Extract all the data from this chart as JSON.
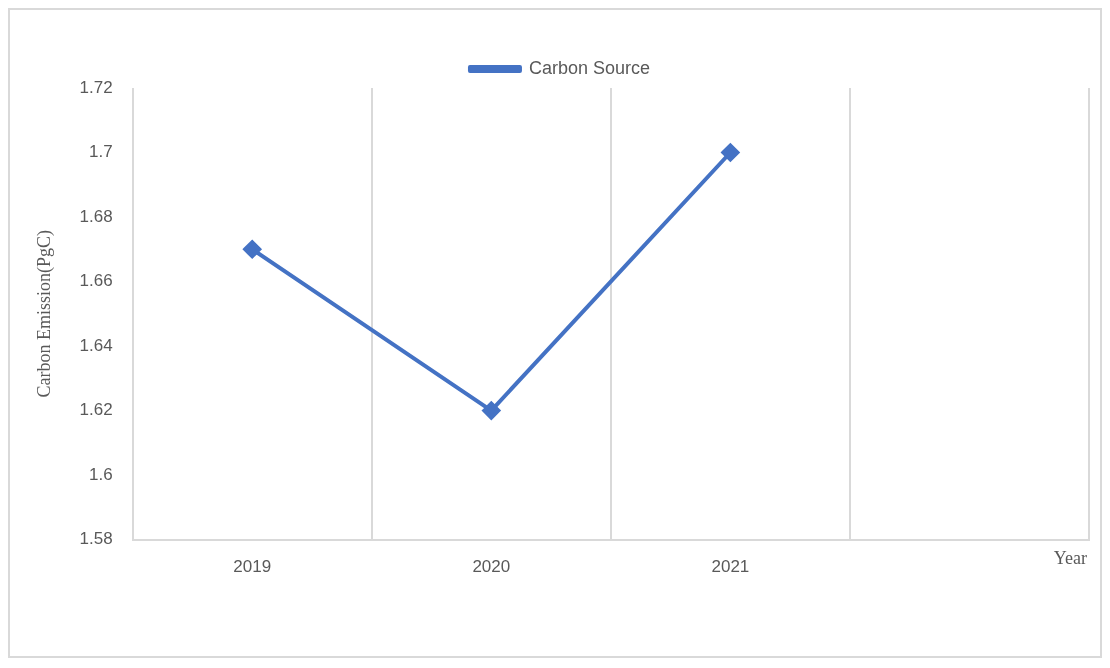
{
  "chart_data": {
    "type": "line",
    "xlabel": "Year",
    "ylabel": "Carbon Emission(PgC)",
    "categories": [
      "2019",
      "2020",
      "2021",
      null
    ],
    "series": [
      {
        "name": "Carbon Source",
        "color": "#4472c4",
        "values": [
          1.67,
          1.62,
          1.7,
          null
        ]
      }
    ],
    "ylim": [
      1.58,
      1.72
    ],
    "yticks": [
      1.58,
      1.6,
      1.62,
      1.64,
      1.66,
      1.68,
      1.7,
      1.72
    ],
    "grid": "x",
    "legend": "top",
    "marker": "diamond",
    "line_style": "solid"
  }
}
